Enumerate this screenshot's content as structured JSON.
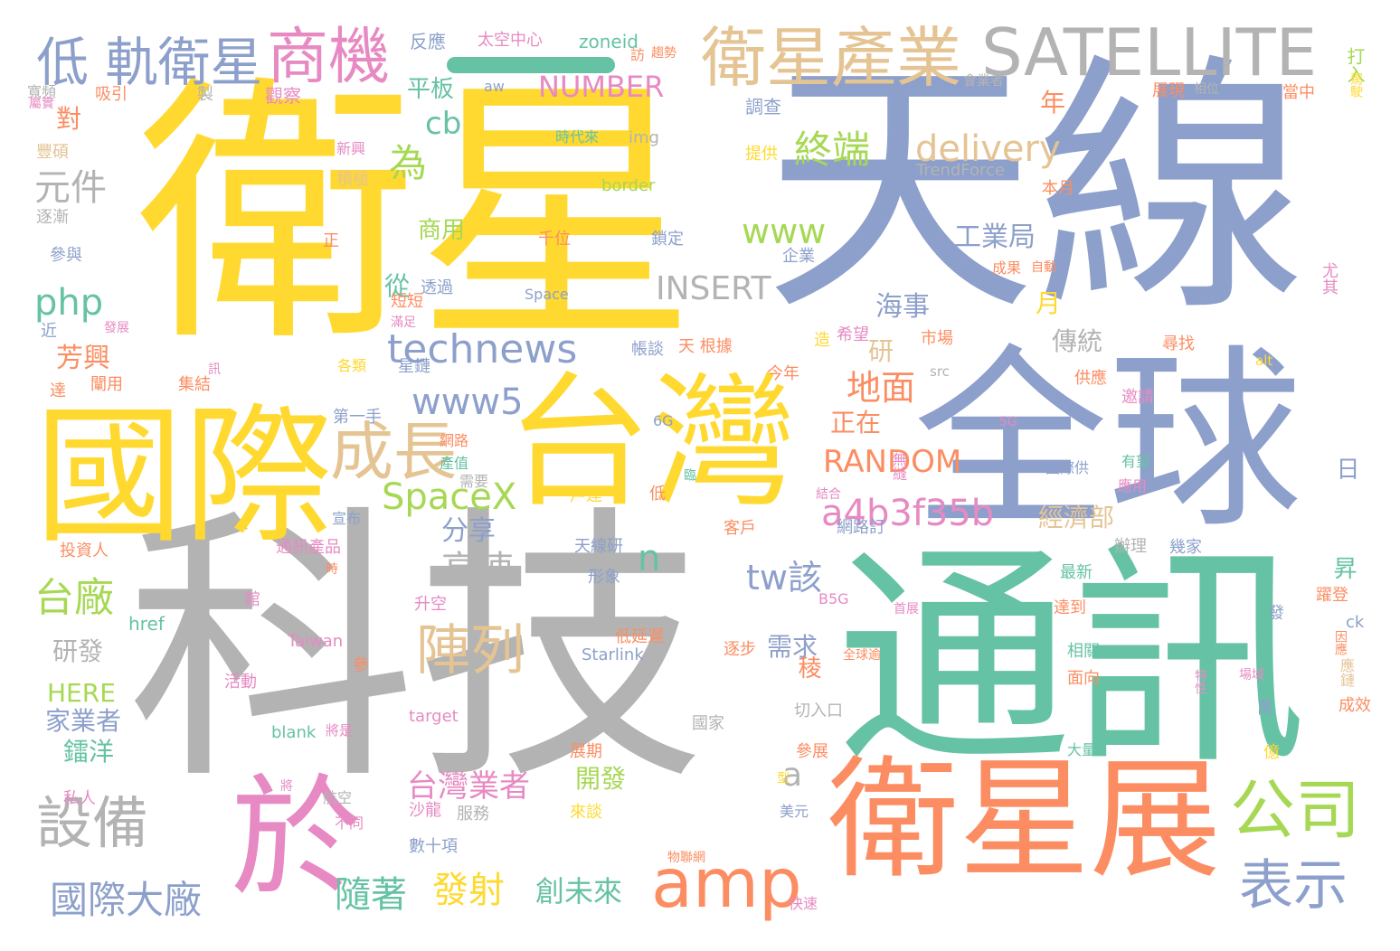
{
  "palette": {
    "yellow": "#ffd92f",
    "blue": "#8da0cb",
    "gray": "#b3b3b3",
    "green": "#66c2a5",
    "orange": "#fc8d62",
    "tan": "#e5c494",
    "pink": "#e78ac3",
    "lime": "#a6d854"
  },
  "decor_bar_color": "#66c2a5",
  "words": [
    {
      "text": "衛星",
      "color": "yellow"
    },
    {
      "text": "天線",
      "color": "blue"
    },
    {
      "text": "科技",
      "color": "gray"
    },
    {
      "text": "通訊",
      "color": "green"
    },
    {
      "text": "全球",
      "color": "blue"
    },
    {
      "text": "國際",
      "color": "yellow"
    },
    {
      "text": "台灣",
      "color": "yellow"
    },
    {
      "text": "衛星展",
      "color": "orange"
    },
    {
      "text": "於",
      "color": "pink"
    },
    {
      "text": "SATELLITE",
      "color": "gray"
    },
    {
      "text": "衛星產業",
      "color": "tan"
    },
    {
      "text": "商機",
      "color": "pink"
    },
    {
      "text": "低 軌衛星",
      "color": "blue"
    },
    {
      "text": "成長",
      "color": "tan"
    },
    {
      "text": "amp",
      "color": "orange"
    },
    {
      "text": "公司",
      "color": "lime"
    },
    {
      "text": "設備",
      "color": "gray"
    },
    {
      "text": "表示",
      "color": "blue"
    },
    {
      "text": "陣列",
      "color": "tan"
    },
    {
      "text": "technews",
      "color": "blue"
    },
    {
      "text": "SpaceX",
      "color": "lime"
    },
    {
      "text": "a4b3f35b",
      "color": "pink"
    },
    {
      "text": "delivery",
      "color": "tan"
    },
    {
      "text": "www5",
      "color": "blue"
    },
    {
      "text": "為",
      "color": "lime"
    },
    {
      "text": "終端",
      "color": "lime"
    },
    {
      "text": "RANDOM",
      "color": "orange"
    },
    {
      "text": "INSERT",
      "color": "gray"
    },
    {
      "text": "www",
      "color": "lime"
    },
    {
      "text": "php",
      "color": "green"
    },
    {
      "text": "台廠",
      "color": "lime"
    },
    {
      "text": "國際大廠",
      "color": "blue"
    },
    {
      "text": "元件",
      "color": "gray"
    },
    {
      "text": "高速",
      "color": "gray"
    },
    {
      "text": "tw該",
      "color": "blue"
    },
    {
      "text": "地面",
      "color": "orange"
    },
    {
      "text": "NUMBER",
      "color": "pink"
    },
    {
      "text": "發射",
      "color": "yellow"
    },
    {
      "text": "隨著",
      "color": "green"
    },
    {
      "text": "創未來",
      "color": "green"
    },
    {
      "text": "台灣業者",
      "color": "pink"
    },
    {
      "text": "工業局",
      "color": "blue"
    },
    {
      "text": "cb",
      "color": "green"
    },
    {
      "text": "平板",
      "color": "green"
    },
    {
      "text": "對",
      "color": "orange"
    },
    {
      "text": "芳興",
      "color": "orange"
    },
    {
      "text": "海事",
      "color": "blue"
    },
    {
      "text": "經濟部",
      "color": "tan"
    },
    {
      "text": "正在",
      "color": "orange"
    },
    {
      "text": "n",
      "color": "green"
    },
    {
      "text": "a",
      "color": "gray"
    },
    {
      "text": "分享",
      "color": "blue"
    },
    {
      "text": "研發",
      "color": "gray"
    },
    {
      "text": "HERE",
      "color": "lime"
    },
    {
      "text": "家業者",
      "color": "blue"
    },
    {
      "text": "鐳洋",
      "color": "green"
    },
    {
      "text": "需求",
      "color": "blue"
    },
    {
      "text": "開發",
      "color": "lime"
    },
    {
      "text": "商用",
      "color": "lime"
    },
    {
      "text": "傳統",
      "color": "gray"
    },
    {
      "text": "從",
      "color": "green"
    },
    {
      "text": "年",
      "color": "orange"
    },
    {
      "text": "月",
      "color": "yellow"
    },
    {
      "text": "研",
      "color": "tan"
    },
    {
      "text": "稜",
      "color": "orange"
    },
    {
      "text": "昇",
      "color": "green"
    },
    {
      "text": "日",
      "color": "blue"
    },
    {
      "text": "反應",
      "color": "blue"
    },
    {
      "text": "太空中心",
      "color": "pink"
    },
    {
      "text": "zoneid",
      "color": "green"
    },
    {
      "text": "觀察",
      "color": "pink"
    },
    {
      "text": "吸引",
      "color": "orange"
    },
    {
      "text": "寬頻",
      "color": "gray"
    },
    {
      "text": "製",
      "color": "gray"
    },
    {
      "text": "訪",
      "color": "orange"
    },
    {
      "text": "趨勢",
      "color": "orange"
    },
    {
      "text": "打入",
      "color": "lime"
    },
    {
      "text": "會業者",
      "color": "gray"
    },
    {
      "text": "展現",
      "color": "orange"
    },
    {
      "text": "相位",
      "color": "gray"
    },
    {
      "text": "當中",
      "color": "orange"
    },
    {
      "text": "駕駛",
      "color": "yellow"
    },
    {
      "text": "調查",
      "color": "blue"
    },
    {
      "text": "aw",
      "color": "blue"
    },
    {
      "text": "時代來",
      "color": "green"
    },
    {
      "text": "img",
      "color": "gray"
    },
    {
      "text": "border",
      "color": "lime"
    },
    {
      "text": "TrendForce",
      "color": "gray"
    },
    {
      "text": "提供",
      "color": "yellow"
    },
    {
      "text": "本月",
      "color": "orange"
    },
    {
      "text": "豐碩",
      "color": "tan"
    },
    {
      "text": "新興",
      "color": "pink"
    },
    {
      "text": "積極",
      "color": "tan"
    },
    {
      "text": "逐漸",
      "color": "gray"
    },
    {
      "text": "參與",
      "color": "blue"
    },
    {
      "text": "近",
      "color": "blue"
    },
    {
      "text": "正",
      "color": "orange"
    },
    {
      "text": "千位",
      "color": "orange"
    },
    {
      "text": "鎖定",
      "color": "blue"
    },
    {
      "text": "企業",
      "color": "blue"
    },
    {
      "text": "Space",
      "color": "blue"
    },
    {
      "text": "透過",
      "color": "blue"
    },
    {
      "text": "短短",
      "color": "orange"
    },
    {
      "text": "滿足",
      "color": "pink"
    },
    {
      "text": "成果",
      "color": "orange"
    },
    {
      "text": "自動",
      "color": "orange"
    },
    {
      "text": "尤其",
      "color": "pink"
    },
    {
      "text": "帳談",
      "color": "blue"
    },
    {
      "text": "天 根據",
      "color": "orange"
    },
    {
      "text": "市場",
      "color": "orange"
    },
    {
      "text": "src",
      "color": "gray"
    },
    {
      "text": "尋找",
      "color": "orange"
    },
    {
      "text": "alt",
      "color": "yellow"
    },
    {
      "text": "星鏈",
      "color": "blue"
    },
    {
      "text": "今年",
      "color": "orange"
    },
    {
      "text": "集結",
      "color": "orange"
    },
    {
      "text": "闡用",
      "color": "orange"
    },
    {
      "text": "達",
      "color": "orange"
    },
    {
      "text": "第一手",
      "color": "blue"
    },
    {
      "text": "網路",
      "color": "orange"
    },
    {
      "text": "產值",
      "color": "green"
    },
    {
      "text": "6G",
      "color": "blue"
    },
    {
      "text": "供應",
      "color": "orange"
    },
    {
      "text": "邀請",
      "color": "pink"
    },
    {
      "text": "5G",
      "color": "pink"
    },
    {
      "text": "國際供",
      "color": "blue"
    },
    {
      "text": "有望",
      "color": "green"
    },
    {
      "text": "應用",
      "color": "pink"
    },
    {
      "text": "戶達",
      "color": "yellow"
    },
    {
      "text": "結合",
      "color": "pink"
    },
    {
      "text": "無縫",
      "color": "pink"
    },
    {
      "text": "宣布",
      "color": "blue"
    },
    {
      "text": "客戶",
      "color": "orange"
    },
    {
      "text": "網路訂",
      "color": "blue"
    },
    {
      "text": "投資人",
      "color": "orange"
    },
    {
      "text": "通訊產品",
      "color": "pink"
    },
    {
      "text": "天線研",
      "color": "blue"
    },
    {
      "text": "辦理",
      "color": "gray"
    },
    {
      "text": "幾家",
      "color": "blue"
    },
    {
      "text": "形象",
      "color": "blue"
    },
    {
      "text": "最新",
      "color": "green"
    },
    {
      "text": "館",
      "color": "pink"
    },
    {
      "text": "升空",
      "color": "pink"
    },
    {
      "text": "B5G",
      "color": "pink"
    },
    {
      "text": "首展",
      "color": "pink"
    },
    {
      "text": "達到",
      "color": "orange"
    },
    {
      "text": "躍登",
      "color": "orange"
    },
    {
      "text": "href",
      "color": "green"
    },
    {
      "text": "低延遲",
      "color": "orange"
    },
    {
      "text": "Taiwan",
      "color": "pink"
    },
    {
      "text": "Starlink",
      "color": "blue"
    },
    {
      "text": "活動",
      "color": "pink"
    },
    {
      "text": "全球逾",
      "color": "orange"
    },
    {
      "text": "相關",
      "color": "green"
    },
    {
      "text": "面向",
      "color": "orange"
    },
    {
      "text": "特性",
      "color": "pink"
    },
    {
      "text": "場域",
      "color": "pink"
    },
    {
      "text": "國家",
      "color": "gray"
    },
    {
      "text": "切入口",
      "color": "gray"
    },
    {
      "text": "target",
      "color": "pink"
    },
    {
      "text": "blank",
      "color": "green"
    },
    {
      "text": "將是",
      "color": "pink"
    },
    {
      "text": "參展",
      "color": "orange"
    },
    {
      "text": "大量",
      "color": "green"
    },
    {
      "text": "成效",
      "color": "orange"
    },
    {
      "text": "私人",
      "color": "pink"
    },
    {
      "text": "航空",
      "color": "gray"
    },
    {
      "text": "不同",
      "color": "pink"
    },
    {
      "text": "沙龍",
      "color": "pink"
    },
    {
      "text": "服務",
      "color": "gray"
    },
    {
      "text": "來談",
      "color": "yellow"
    },
    {
      "text": "美元",
      "color": "blue"
    },
    {
      "text": "數十項",
      "color": "blue"
    },
    {
      "text": "物聯網",
      "color": "orange"
    },
    {
      "text": "快速",
      "color": "pink"
    },
    {
      "text": "億",
      "color": "yellow"
    },
    {
      "text": "萬",
      "color": "blue"
    },
    {
      "text": "因應",
      "color": "orange"
    },
    {
      "text": "ck",
      "color": "blue"
    },
    {
      "text": "應鏈",
      "color": "tan"
    },
    {
      "text": "發",
      "color": "blue"
    },
    {
      "text": "展期",
      "color": "orange"
    },
    {
      "text": "逐步",
      "color": "orange"
    },
    {
      "text": "參",
      "color": "orange"
    },
    {
      "text": "型",
      "color": "yellow"
    },
    {
      "text": "將",
      "color": "pink"
    },
    {
      "text": "低",
      "color": "orange"
    },
    {
      "text": "臨",
      "color": "green"
    },
    {
      "text": "需要",
      "color": "gray"
    },
    {
      "text": "屬實",
      "color": "pink"
    },
    {
      "text": "各類",
      "color": "yellow"
    },
    {
      "text": "訊",
      "color": "pink"
    },
    {
      "text": "發展",
      "color": "pink"
    },
    {
      "text": "希望",
      "color": "pink"
    },
    {
      "text": "造",
      "color": "yellow"
    },
    {
      "text": "時",
      "color": "orange"
    },
    {
      "text": "不斷",
      "color": "pink"
    }
  ]
}
